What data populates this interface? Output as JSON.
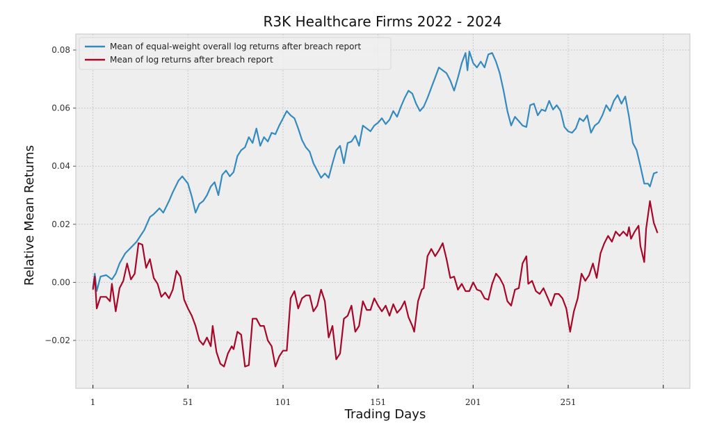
{
  "chart_data": {
    "type": "line",
    "title": "R3K Healthcare Firms 2022 - 2024",
    "xlabel": "Trading Days",
    "ylabel": "Relative Mean Returns",
    "xlim": [
      -8,
      315
    ],
    "ylim": [
      -0.0365,
      0.0855
    ],
    "x_ticks": [
      1,
      51,
      101,
      151,
      201,
      251,
      301
    ],
    "x_tick_labels": [
      "1",
      "51",
      "101",
      "151",
      "201",
      "251",
      ""
    ],
    "y_ticks": [
      0.08,
      0.06,
      0.04,
      0.02,
      0.0,
      -0.02
    ],
    "y_tick_labels": [
      "0.08",
      "0.06",
      "0.04",
      "0.02",
      "0.00",
      "−0.02"
    ],
    "grid": true,
    "legend_position": "top-left",
    "series": [
      {
        "name": "Mean of equal-weight overall log returns after breach report",
        "color": "#348abd",
        "x": [
          1,
          2,
          3,
          5,
          8,
          11,
          13,
          15,
          18,
          21,
          24,
          26,
          28,
          31,
          33,
          36,
          38,
          41,
          43,
          46,
          48,
          51,
          53,
          55,
          57,
          59,
          61,
          63,
          65,
          67,
          69,
          71,
          73,
          75,
          77,
          79,
          81,
          83,
          85,
          87,
          89,
          91,
          93,
          95,
          97,
          99,
          101,
          103,
          105,
          107,
          109,
          111,
          113,
          115,
          117,
          119,
          121,
          123,
          125,
          127,
          129,
          131,
          133,
          135,
          137,
          139,
          141,
          143,
          145,
          147,
          149,
          151,
          153,
          155,
          157,
          159,
          161,
          163,
          165,
          167,
          169,
          171,
          173,
          175,
          177,
          179,
          181,
          183,
          185,
          187,
          189,
          191,
          193,
          195,
          197,
          198,
          199,
          201,
          203,
          205,
          207,
          209,
          211,
          213,
          215,
          217,
          219,
          221,
          223,
          225,
          227,
          229,
          231,
          233,
          235,
          237,
          239,
          241,
          243,
          245,
          247,
          249,
          251,
          253,
          255,
          257,
          259,
          261,
          263,
          265,
          267,
          269,
          271,
          273,
          275,
          277,
          279,
          281,
          283,
          285,
          287,
          289,
          291,
          293,
          294,
          296,
          298
        ],
        "y": [
          -0.002,
          0.003,
          -0.003,
          0.002,
          0.0025,
          0.001,
          0.003,
          0.0065,
          0.01,
          0.012,
          0.014,
          0.016,
          0.018,
          0.0225,
          0.0235,
          0.0255,
          0.024,
          0.028,
          0.031,
          0.035,
          0.0365,
          0.034,
          0.0295,
          0.024,
          0.027,
          0.028,
          0.03,
          0.033,
          0.0345,
          0.03,
          0.037,
          0.0385,
          0.0365,
          0.038,
          0.0435,
          0.0455,
          0.0465,
          0.05,
          0.048,
          0.053,
          0.047,
          0.05,
          0.0485,
          0.0515,
          0.051,
          0.054,
          0.0565,
          0.059,
          0.0575,
          0.0565,
          0.053,
          0.049,
          0.0465,
          0.045,
          0.041,
          0.0385,
          0.036,
          0.0375,
          0.036,
          0.041,
          0.0455,
          0.047,
          0.041,
          0.048,
          0.0485,
          0.0505,
          0.047,
          0.054,
          0.053,
          0.052,
          0.054,
          0.055,
          0.0565,
          0.0545,
          0.056,
          0.059,
          0.057,
          0.0605,
          0.0635,
          0.066,
          0.065,
          0.0615,
          0.059,
          0.0605,
          0.0635,
          0.067,
          0.0705,
          0.074,
          0.073,
          0.072,
          0.0695,
          0.066,
          0.0705,
          0.0755,
          0.079,
          0.073,
          0.0795,
          0.0755,
          0.074,
          0.076,
          0.074,
          0.0785,
          0.079,
          0.076,
          0.072,
          0.066,
          0.059,
          0.054,
          0.057,
          0.0555,
          0.054,
          0.0535,
          0.061,
          0.0615,
          0.0575,
          0.0595,
          0.059,
          0.0625,
          0.0595,
          0.061,
          0.059,
          0.0535,
          0.052,
          0.0515,
          0.053,
          0.0565,
          0.0555,
          0.0575,
          0.0515,
          0.054,
          0.055,
          0.0575,
          0.061,
          0.059,
          0.0625,
          0.0645,
          0.0615,
          0.064,
          0.057,
          0.048,
          0.0455,
          0.04,
          0.034,
          0.034,
          0.033,
          0.0375,
          0.038
        ]
      },
      {
        "name": "Mean of log returns after breach report",
        "color": "#a60628",
        "x": [
          1,
          2,
          3,
          5,
          8,
          10,
          11,
          13,
          15,
          17,
          19,
          21,
          23,
          25,
          27,
          29,
          31,
          33,
          35,
          37,
          39,
          41,
          43,
          45,
          47,
          49,
          51,
          53,
          55,
          57,
          59,
          61,
          63,
          64,
          66,
          68,
          70,
          72,
          74,
          75,
          77,
          79,
          81,
          83,
          85,
          87,
          89,
          91,
          93,
          95,
          97,
          99,
          101,
          103,
          105,
          107,
          109,
          111,
          113,
          115,
          117,
          119,
          121,
          123,
          125,
          127,
          129,
          131,
          133,
          135,
          137,
          139,
          141,
          143,
          145,
          147,
          149,
          151,
          153,
          155,
          157,
          159,
          161,
          163,
          165,
          167,
          169,
          170,
          172,
          174,
          175,
          177,
          179,
          181,
          183,
          185,
          187,
          189,
          191,
          193,
          195,
          197,
          199,
          201,
          203,
          205,
          207,
          209,
          211,
          213,
          215,
          217,
          219,
          221,
          223,
          225,
          227,
          229,
          230,
          232,
          234,
          236,
          238,
          240,
          242,
          244,
          246,
          248,
          250,
          252,
          254,
          256,
          258,
          260,
          262,
          264,
          266,
          268,
          270,
          272,
          274,
          276,
          278,
          280,
          282,
          283,
          284,
          286,
          288,
          289,
          291,
          292,
          294,
          296,
          298
        ],
        "y": [
          -0.0025,
          0.002,
          -0.009,
          -0.005,
          -0.005,
          -0.0065,
          -0.0005,
          -0.01,
          -0.002,
          0.0005,
          0.0065,
          0.001,
          0.003,
          0.0135,
          0.013,
          0.005,
          0.008,
          0.0015,
          -0.0005,
          -0.005,
          -0.0035,
          -0.0055,
          -0.0025,
          0.004,
          0.002,
          -0.006,
          -0.009,
          -0.0115,
          -0.015,
          -0.02,
          -0.0215,
          -0.019,
          -0.022,
          -0.015,
          -0.024,
          -0.028,
          -0.029,
          -0.0245,
          -0.022,
          -0.023,
          -0.017,
          -0.018,
          -0.029,
          -0.0285,
          -0.0125,
          -0.0125,
          -0.015,
          -0.015,
          -0.02,
          -0.022,
          -0.029,
          -0.0255,
          -0.0235,
          -0.0235,
          -0.0055,
          -0.003,
          -0.009,
          -0.0055,
          -0.0045,
          -0.0045,
          -0.01,
          -0.008,
          -0.0025,
          -0.0065,
          -0.019,
          -0.015,
          -0.0265,
          -0.0245,
          -0.0125,
          -0.0115,
          -0.008,
          -0.017,
          -0.015,
          -0.0065,
          -0.0095,
          -0.0095,
          -0.0055,
          -0.008,
          -0.01,
          -0.008,
          -0.0115,
          -0.0075,
          -0.0105,
          -0.009,
          -0.0065,
          -0.012,
          -0.015,
          -0.017,
          -0.0065,
          -0.0025,
          -0.002,
          0.009,
          0.0115,
          0.009,
          0.011,
          0.0135,
          0.008,
          0.0015,
          0.002,
          -0.0025,
          -0.0005,
          -0.003,
          -0.003,
          0.0,
          -0.0025,
          -0.003,
          -0.0055,
          -0.006,
          -0.0005,
          0.003,
          0.0015,
          -0.001,
          -0.0065,
          -0.008,
          -0.0025,
          -0.002,
          0.0065,
          0.009,
          -0.0005,
          0.0005,
          -0.003,
          -0.004,
          -0.002,
          -0.005,
          -0.008,
          -0.004,
          -0.004,
          -0.0055,
          -0.009,
          -0.017,
          -0.01,
          -0.0055,
          0.003,
          0.0005,
          0.0025,
          0.0065,
          0.0015,
          0.01,
          0.0135,
          0.016,
          0.014,
          0.0175,
          0.016,
          0.0175,
          0.016,
          0.019,
          0.015,
          0.0175,
          0.0195,
          0.0125,
          0.007,
          0.0185,
          0.028,
          0.0205,
          0.017
        ]
      }
    ]
  }
}
